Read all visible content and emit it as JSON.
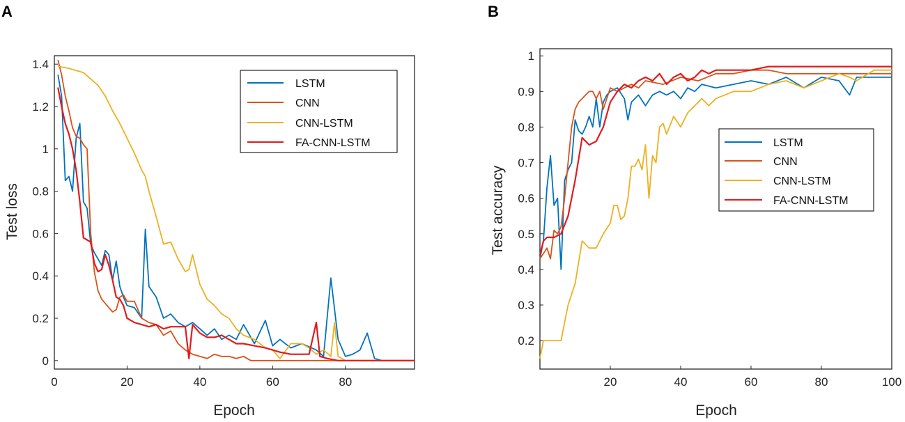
{
  "chart_data": [
    {
      "type": "line",
      "panel_label": "A",
      "xlabel": "Epoch",
      "ylabel": "Test loss",
      "xlim": [
        0,
        99
      ],
      "ylim": [
        -0.04,
        1.44
      ],
      "xticks": [
        0,
        20,
        40,
        60,
        80
      ],
      "xtick_labels": [
        "0",
        "20",
        "40",
        "60",
        "80"
      ],
      "yticks": [
        0,
        0.2,
        0.4,
        0.6,
        0.8,
        1,
        1.2,
        1.4
      ],
      "ytick_labels": [
        "0",
        "0.2",
        "0.4",
        "0.6",
        "0.8",
        "1",
        "1.2",
        "1.4"
      ],
      "legend_position": "top-right",
      "series": [
        {
          "name": "LSTM",
          "color": "#0072BD",
          "x": [
            1,
            2,
            3,
            4,
            5,
            6,
            7,
            8,
            9,
            10,
            11,
            12,
            13,
            14,
            15,
            16,
            17,
            18,
            19,
            20,
            22,
            24,
            25,
            26,
            28,
            30,
            32,
            34,
            36,
            38,
            40,
            42,
            44,
            46,
            48,
            50,
            52,
            55,
            58,
            60,
            62,
            65,
            68,
            72,
            74,
            76,
            78,
            80,
            82,
            84,
            86,
            88,
            90,
            95,
            99
          ],
          "y": [
            1.35,
            1.25,
            0.85,
            0.87,
            0.8,
            1.05,
            1.12,
            0.75,
            0.72,
            0.55,
            0.51,
            0.48,
            0.45,
            0.52,
            0.5,
            0.38,
            0.47,
            0.35,
            0.3,
            0.26,
            0.25,
            0.2,
            0.62,
            0.35,
            0.3,
            0.2,
            0.22,
            0.18,
            0.16,
            0.18,
            0.15,
            0.12,
            0.15,
            0.1,
            0.12,
            0.1,
            0.17,
            0.08,
            0.19,
            0.07,
            0.1,
            0.06,
            0.08,
            0.05,
            0.02,
            0.39,
            0.1,
            0.02,
            0.03,
            0.05,
            0.13,
            0.01,
            0,
            0,
            0
          ]
        },
        {
          "name": "CNN",
          "color": "#D95319",
          "x": [
            1,
            2,
            3,
            4,
            5,
            6,
            7,
            8,
            9,
            10,
            11,
            12,
            13,
            14,
            15,
            16,
            17,
            18,
            19,
            20,
            22,
            24,
            26,
            28,
            30,
            32,
            34,
            36,
            38,
            40,
            42,
            44,
            46,
            48,
            50,
            52,
            54,
            56,
            60,
            65,
            70,
            75,
            80,
            90,
            99
          ],
          "y": [
            1.42,
            1.35,
            1.25,
            1.18,
            1.1,
            1.06,
            1.05,
            1.02,
            1.0,
            0.6,
            0.42,
            0.33,
            0.29,
            0.27,
            0.25,
            0.23,
            0.24,
            0.3,
            0.31,
            0.28,
            0.28,
            0.2,
            0.18,
            0.17,
            0.12,
            0.14,
            0.08,
            0.05,
            0.03,
            0.02,
            0.01,
            0.03,
            0.02,
            0.02,
            0.01,
            0.02,
            0,
            0,
            0,
            0,
            0,
            0,
            0,
            0,
            0
          ]
        },
        {
          "name": "CNN-LSTM",
          "color": "#EDB120",
          "x": [
            1,
            4,
            8,
            12,
            14,
            16,
            18,
            20,
            22,
            24,
            25,
            26,
            28,
            30,
            32,
            34,
            36,
            37,
            38,
            40,
            42,
            44,
            46,
            48,
            50,
            52,
            55,
            58,
            60,
            62,
            65,
            68,
            70,
            72,
            74,
            76,
            77,
            78,
            80,
            85,
            90,
            99
          ],
          "y": [
            1.39,
            1.38,
            1.36,
            1.3,
            1.25,
            1.18,
            1.12,
            1.05,
            0.98,
            0.9,
            0.87,
            0.8,
            0.68,
            0.55,
            0.56,
            0.48,
            0.42,
            0.43,
            0.5,
            0.36,
            0.29,
            0.26,
            0.22,
            0.2,
            0.15,
            0.12,
            0.1,
            0.06,
            0.05,
            0.01,
            0.08,
            0.08,
            0.06,
            0.03,
            0.05,
            0.02,
            0.18,
            0.02,
            0,
            0,
            0,
            0
          ]
        },
        {
          "name": "FA-CNN-LSTM",
          "color": "#E31A1C",
          "x": [
            1,
            2,
            3,
            4,
            5,
            6,
            7,
            8,
            9,
            10,
            11,
            12,
            13,
            14,
            15,
            16,
            17,
            18,
            19,
            20,
            22,
            24,
            26,
            28,
            30,
            32,
            34,
            36,
            37,
            38,
            40,
            42,
            44,
            46,
            48,
            50,
            52,
            55,
            58,
            60,
            62,
            65,
            68,
            70,
            72,
            73,
            75,
            78,
            80,
            90,
            99
          ],
          "y": [
            1.29,
            1.2,
            1.12,
            1.07,
            1.0,
            0.9,
            0.75,
            0.58,
            0.57,
            0.56,
            0.46,
            0.42,
            0.43,
            0.5,
            0.45,
            0.38,
            0.3,
            0.29,
            0.26,
            0.2,
            0.18,
            0.17,
            0.16,
            0.17,
            0.15,
            0.16,
            0.16,
            0.16,
            0.01,
            0.17,
            0.13,
            0.11,
            0.11,
            0.12,
            0.1,
            0.08,
            0.08,
            0.07,
            0.06,
            0.05,
            0.04,
            0.03,
            0.03,
            0.03,
            0.18,
            0.02,
            0.01,
            0,
            0,
            0,
            0
          ]
        }
      ]
    },
    {
      "type": "line",
      "panel_label": "B",
      "xlabel": "Epoch",
      "ylabel": "Test accuracy",
      "xlim": [
        0,
        100
      ],
      "ylim": [
        0.12,
        1.02
      ],
      "xticks": [
        20,
        40,
        60,
        80,
        100
      ],
      "xtick_labels": [
        "20",
        "40",
        "60",
        "80",
        "100"
      ],
      "yticks": [
        0.2,
        0.3,
        0.4,
        0.5,
        0.6,
        0.7,
        0.8,
        0.9,
        1
      ],
      "ytick_labels": [
        "0.2",
        "0.3",
        "0.4",
        "0.5",
        "0.6",
        "0.7",
        "0.8",
        "0.9",
        "1"
      ],
      "legend_position": "center-right",
      "series": [
        {
          "name": "LSTM",
          "color": "#0072BD",
          "x": [
            0,
            1,
            2,
            3,
            4,
            5,
            6,
            7,
            8,
            9,
            10,
            11,
            12,
            13,
            14,
            15,
            16,
            17,
            18,
            19,
            20,
            22,
            24,
            25,
            26,
            28,
            30,
            32,
            34,
            36,
            38,
            40,
            42,
            44,
            46,
            50,
            55,
            60,
            65,
            70,
            75,
            80,
            85,
            88,
            90,
            95,
            100
          ],
          "y": [
            0.43,
            0.48,
            0.63,
            0.72,
            0.58,
            0.6,
            0.4,
            0.65,
            0.68,
            0.7,
            0.82,
            0.79,
            0.78,
            0.8,
            0.83,
            0.8,
            0.88,
            0.8,
            0.87,
            0.89,
            0.9,
            0.91,
            0.88,
            0.82,
            0.87,
            0.89,
            0.86,
            0.89,
            0.9,
            0.89,
            0.9,
            0.88,
            0.91,
            0.9,
            0.92,
            0.91,
            0.92,
            0.93,
            0.92,
            0.94,
            0.91,
            0.94,
            0.93,
            0.89,
            0.94,
            0.94,
            0.94
          ]
        },
        {
          "name": "CNN",
          "color": "#D95319",
          "x": [
            0,
            2,
            3,
            4,
            5,
            6,
            7,
            8,
            9,
            10,
            11,
            12,
            13,
            14,
            15,
            16,
            17,
            18,
            20,
            22,
            24,
            26,
            28,
            30,
            35,
            40,
            45,
            50,
            55,
            60,
            65,
            70,
            80,
            90,
            100
          ],
          "y": [
            0.43,
            0.46,
            0.43,
            0.51,
            0.5,
            0.52,
            0.6,
            0.7,
            0.8,
            0.85,
            0.87,
            0.88,
            0.89,
            0.9,
            0.9,
            0.88,
            0.9,
            0.85,
            0.91,
            0.9,
            0.91,
            0.92,
            0.91,
            0.93,
            0.92,
            0.94,
            0.93,
            0.95,
            0.95,
            0.96,
            0.96,
            0.95,
            0.95,
            0.95,
            0.95
          ]
        },
        {
          "name": "CNN-LSTM",
          "color": "#EDB120",
          "x": [
            0,
            1,
            2,
            4,
            6,
            8,
            10,
            12,
            14,
            16,
            18,
            20,
            21,
            22,
            23,
            24,
            25,
            26,
            27,
            28,
            29,
            30,
            31,
            32,
            33,
            34,
            35,
            36,
            38,
            40,
            42,
            44,
            46,
            48,
            50,
            55,
            60,
            65,
            70,
            75,
            80,
            85,
            88,
            90,
            95,
            100
          ],
          "y": [
            0.15,
            0.2,
            0.2,
            0.2,
            0.2,
            0.3,
            0.36,
            0.48,
            0.46,
            0.46,
            0.5,
            0.53,
            0.58,
            0.58,
            0.54,
            0.55,
            0.6,
            0.69,
            0.69,
            0.71,
            0.68,
            0.75,
            0.6,
            0.72,
            0.7,
            0.8,
            0.81,
            0.78,
            0.83,
            0.8,
            0.84,
            0.86,
            0.88,
            0.86,
            0.88,
            0.9,
            0.9,
            0.92,
            0.93,
            0.91,
            0.93,
            0.95,
            0.94,
            0.93,
            0.96,
            0.96
          ]
        },
        {
          "name": "FA-CNN-LSTM",
          "color": "#E31A1C",
          "x": [
            0,
            1,
            2,
            4,
            6,
            8,
            10,
            12,
            14,
            16,
            18,
            20,
            22,
            24,
            26,
            28,
            30,
            32,
            34,
            36,
            38,
            40,
            42,
            44,
            46,
            48,
            50,
            55,
            60,
            65,
            70,
            75,
            80,
            85,
            90,
            95,
            100
          ],
          "y": [
            0.44,
            0.48,
            0.49,
            0.49,
            0.5,
            0.55,
            0.65,
            0.77,
            0.75,
            0.76,
            0.8,
            0.87,
            0.9,
            0.92,
            0.91,
            0.93,
            0.94,
            0.93,
            0.95,
            0.92,
            0.94,
            0.95,
            0.93,
            0.94,
            0.96,
            0.95,
            0.96,
            0.96,
            0.96,
            0.97,
            0.97,
            0.97,
            0.97,
            0.97,
            0.97,
            0.97,
            0.97
          ]
        }
      ]
    }
  ]
}
